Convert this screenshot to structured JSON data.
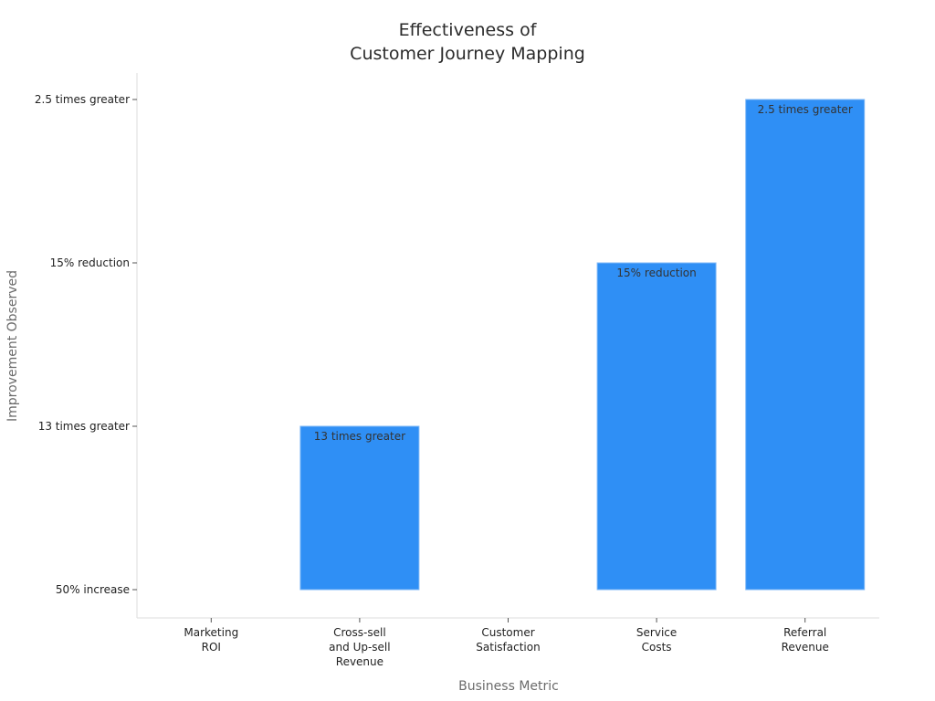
{
  "chart_data": {
    "type": "bar",
    "title_lines": [
      "Effectiveness of",
      "Customer Journey Mapping"
    ],
    "xlabel": "Business Metric",
    "ylabel": "Improvement Observed",
    "categories": [
      [
        "Marketing",
        "ROI"
      ],
      [
        "Cross-sell",
        "and Up-sell",
        "Revenue"
      ],
      [
        "Customer",
        "Satisfaction"
      ],
      [
        "Service",
        "Costs"
      ],
      [
        "Referral",
        "Revenue"
      ]
    ],
    "y_categories": [
      "50% increase",
      "13 times greater",
      "15% reduction",
      "2.5 times greater"
    ],
    "values": [
      "50% increase",
      "13 times greater",
      "50% increase",
      "15% reduction",
      "2.5 times greater"
    ],
    "data_labels": [
      "",
      "13 times greater",
      "",
      "15% reduction",
      "2.5 times greater"
    ],
    "bar_color": "#2f8ff5",
    "grid": false
  }
}
